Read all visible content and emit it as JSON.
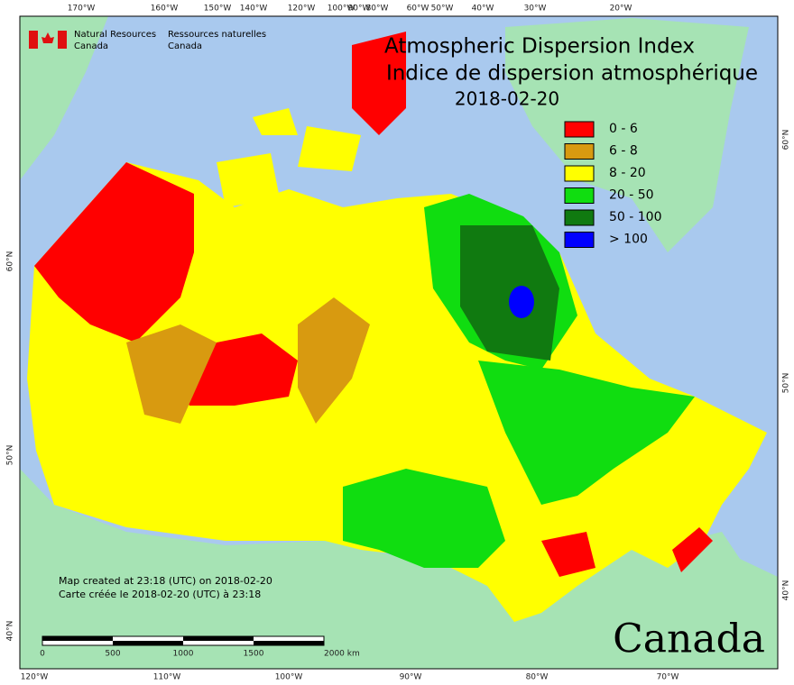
{
  "header": {
    "org_en": [
      "Natural Resources",
      "Canada"
    ],
    "org_fr": [
      "Ressources naturelles",
      "Canada"
    ]
  },
  "title": [
    "Atmospheric Dispersion Index",
    "Indice de dispersion atmosphérique",
    "2018-02-20"
  ],
  "legend": [
    {
      "label": "0 - 6",
      "color": "#ff0000"
    },
    {
      "label": "6 - 8",
      "color": "#d89a10"
    },
    {
      "label": "8 - 20",
      "color": "#ffff00"
    },
    {
      "label": "20 - 50",
      "color": "#10dd10"
    },
    {
      "label": "50 - 100",
      "color": "#107a10"
    },
    {
      "label": "> 100",
      "color": "#0000ff"
    }
  ],
  "top_longitudes": [
    "170°W",
    "160°W",
    "150°W",
    "140°W",
    "120°W",
    "100°W",
    "90°W",
    "80°W",
    "60°W",
    "50°W",
    "40°W",
    "30°W",
    "20°W"
  ],
  "bottom_longitudes": [
    "120°W",
    "110°W",
    "100°W",
    "90°W",
    "80°W",
    "70°W"
  ],
  "left_latitudes": [
    "60°N",
    "50°N",
    "40°N"
  ],
  "right_latitudes": [
    "60°N",
    "50°N",
    "40°N"
  ],
  "notes": [
    "Map created at 23:18 (UTC) on 2018-02-20",
    "Carte créée le 2018-02-20 (UTC) à 23:18"
  ],
  "scale": [
    "0",
    "500",
    "1000",
    "1500",
    "2000 km"
  ],
  "wordmark": "Canada"
}
